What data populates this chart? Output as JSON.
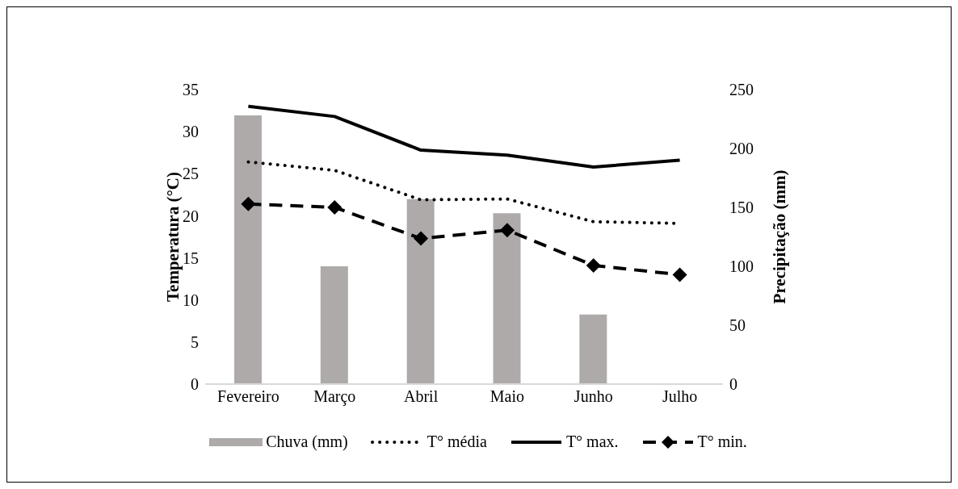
{
  "chart_data": {
    "type": "line",
    "categories": [
      "Fevereiro",
      "Março",
      "Abril",
      "Maio",
      "Junho",
      "Julho"
    ],
    "ylabel": "Temperatura (°C)",
    "y2label": "Precipitação (mm)",
    "ylim": [
      0,
      35
    ],
    "yticks": [
      0,
      5,
      10,
      15,
      20,
      25,
      30,
      35
    ],
    "y2lim": [
      0,
      250
    ],
    "y2ticks": [
      0,
      50,
      100,
      150,
      200,
      250
    ],
    "grid": false,
    "legend": "bottom",
    "series": [
      {
        "name": "Chuva (mm)",
        "type": "bar",
        "axis": "y2",
        "color": "#aeaaaa",
        "values": [
          228,
          100,
          157,
          145,
          59,
          null
        ]
      },
      {
        "name": "T° média",
        "color": "#000000",
        "line_style": "dotted",
        "marker": "none",
        "values": [
          26.4,
          25.4,
          21.9,
          22.0,
          19.3,
          19.1
        ]
      },
      {
        "name": "T° max.",
        "color": "#000000",
        "line_style": "solid",
        "marker": "none",
        "values": [
          33.0,
          31.8,
          27.8,
          27.2,
          25.8,
          26.6
        ]
      },
      {
        "name": "T° min.",
        "color": "#000000",
        "line_style": "dashed",
        "marker": "diamond",
        "values": [
          21.4,
          21.0,
          17.3,
          18.3,
          14.1,
          13.0
        ]
      }
    ]
  }
}
